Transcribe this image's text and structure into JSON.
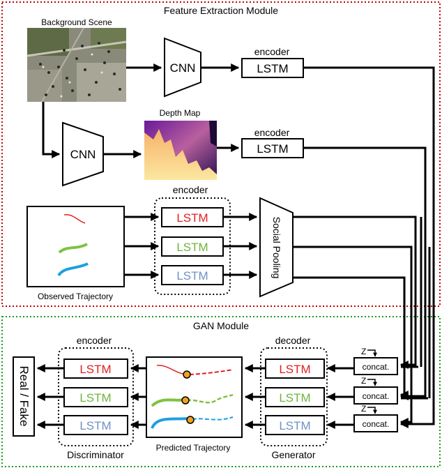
{
  "modules": {
    "feature": {
      "title": "Feature Extraction Module"
    },
    "gan": {
      "title": "GAN Module"
    }
  },
  "labels": {
    "background_scene": "Background Scene",
    "depth_map": "Depth Map",
    "observed_trajectory": "Observed Trajectory",
    "predicted_trajectory": "Predicted Trajectory",
    "encoder": "encoder",
    "decoder": "decoder",
    "cnn": "CNN",
    "lstm": "LSTM",
    "social_pooling": "Social Pooling",
    "concat": "concat.",
    "noise": "Z",
    "real_fake": "Real / Fake",
    "discriminator": "Discriminator",
    "generator": "Generator"
  },
  "colors": {
    "red_path": "#e02020",
    "green_path": "#7fc241",
    "blue_path": "#1ea0e0",
    "red_text": "#e02020",
    "green_text": "#6fb33c",
    "blue_text": "#6f90c8",
    "feature_border": "#c00000",
    "gan_border": "#1a9a1a",
    "marker": "#f0a020"
  }
}
